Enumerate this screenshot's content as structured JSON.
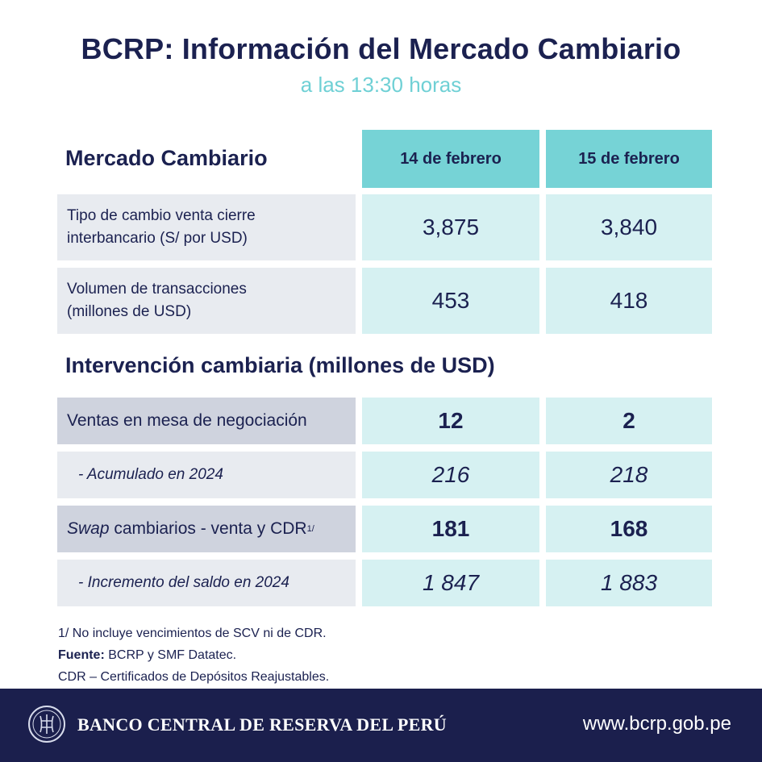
{
  "header": {
    "title": "BCRP: Información del Mercado Cambiario",
    "subtitle": "a las 13:30 horas"
  },
  "market": {
    "section_title": "Mercado Cambiario",
    "columns": [
      "14 de febrero",
      "15 de febrero"
    ],
    "rows": [
      {
        "label_line1": "Tipo de cambio venta cierre",
        "label_line2": "interbancario (S/ por USD)",
        "values": [
          "3,875",
          "3,840"
        ]
      },
      {
        "label_line1": "Volumen de transacciones",
        "label_line2": "(millones de USD)",
        "values": [
          "453",
          "418"
        ]
      }
    ]
  },
  "intervention": {
    "section_title": "Intervención cambiaria (millones de USD)",
    "rows": [
      {
        "label": "Ventas en mesa de negociación",
        "values": [
          "12",
          "2"
        ]
      },
      {
        "label": "-  Acumulado  en 2024",
        "values": [
          "216",
          "218"
        ]
      },
      {
        "label_italic": "Swap",
        "label_rest": " cambiarios - venta y CDR",
        "label_sup": "1/",
        "values": [
          "181",
          "168"
        ]
      },
      {
        "label": "-  Incremento  del saldo en 2024",
        "values": [
          "1 847",
          "1 883"
        ]
      }
    ]
  },
  "notes": {
    "note1": "1/ No incluye vencimientos de SCV ni de CDR.",
    "source_label": "Fuente:",
    "source_text": " BCRP y SMF Datatec.",
    "note3": "CDR – Certificados de Depósitos Reajustables."
  },
  "footer": {
    "bank_name": "BANCO CENTRAL DE RESERVA DEL PERÚ",
    "website": "www.bcrp.gob.pe",
    "seal_icon": "bcrp-seal-icon"
  },
  "colors": {
    "navy": "#1b2150",
    "teal_header": "#76d3d6",
    "teal_light": "#d6f1f2",
    "gray_light": "#e8ebf0",
    "gray_dark": "#cfd3de",
    "footer_bg": "#1b1f4d",
    "subtitle": "#6fd0d5"
  }
}
